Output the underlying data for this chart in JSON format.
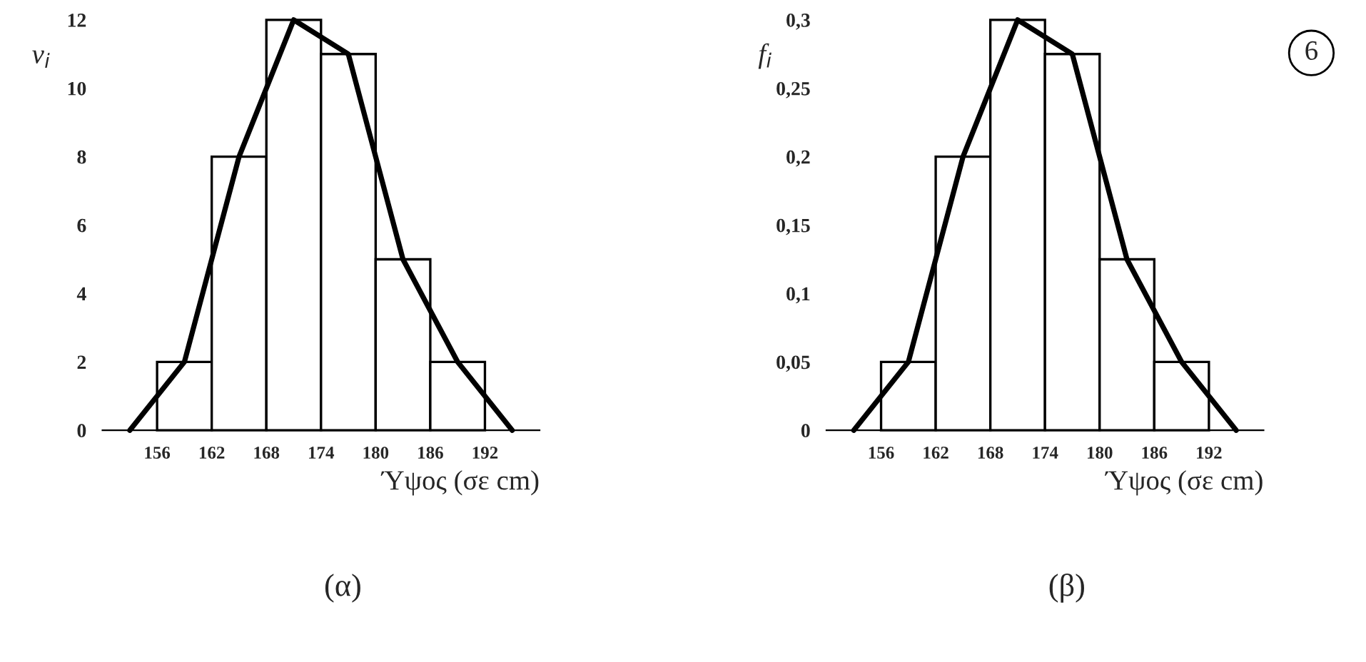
{
  "chart_data": [
    {
      "type": "histogram",
      "bins": [
        156,
        162,
        168,
        174,
        180,
        186,
        192
      ],
      "values": [
        2,
        8,
        12,
        11,
        5,
        2
      ],
      "color": "#ffffff",
      "series": [
        {
          "type": "line",
          "color": "#000000",
          "x": [
            153,
            159,
            165,
            171,
            177,
            183,
            189,
            195
          ],
          "values": [
            0,
            2,
            8,
            12,
            11,
            5,
            2,
            0
          ]
        }
      ],
      "xlabel": "Ύψος (σε cm)",
      "ylabel": "ν$_{i}$",
      "xlim": [
        150,
        198
      ],
      "ylim": [
        0,
        12
      ],
      "xticks": [
        156,
        162,
        168,
        174,
        180,
        186,
        192
      ],
      "yticks": [
        0,
        2,
        4,
        6,
        8,
        10,
        12
      ],
      "grid": false,
      "legend": false,
      "annotations": [
        "(α)"
      ]
    },
    {
      "type": "histogram",
      "bins": [
        156,
        162,
        168,
        174,
        180,
        186,
        192
      ],
      "values": [
        0.05,
        0.2,
        0.3,
        0.275,
        0.125,
        0.05
      ],
      "color": "#ffffff",
      "series": [
        {
          "type": "line",
          "color": "#000000",
          "x": [
            153,
            159,
            165,
            171,
            177,
            183,
            189,
            195
          ],
          "values": [
            0,
            0.05,
            0.2,
            0.3,
            0.275,
            0.125,
            0.05,
            0
          ]
        }
      ],
      "xlabel": "Ύψος (σε cm)",
      "ylabel": "f$_{i}$",
      "xlim": [
        150,
        198
      ],
      "ylim": [
        0,
        0.3
      ],
      "xticks": [
        156,
        162,
        168,
        174,
        180,
        186,
        192
      ],
      "yticks": [
        0,
        {
          "value": 0.05,
          "label": "0,05"
        },
        {
          "value": 0.1,
          "label": "0,1"
        },
        {
          "value": 0.15,
          "label": "0,15"
        },
        {
          "value": 0.2,
          "label": "0,2"
        },
        {
          "value": 0.25,
          "label": "0,25"
        },
        {
          "value": 0.3,
          "label": "0,3"
        }
      ],
      "grid": false,
      "legend": false,
      "annotations": [
        "(β)",
        "6"
      ]
    }
  ]
}
